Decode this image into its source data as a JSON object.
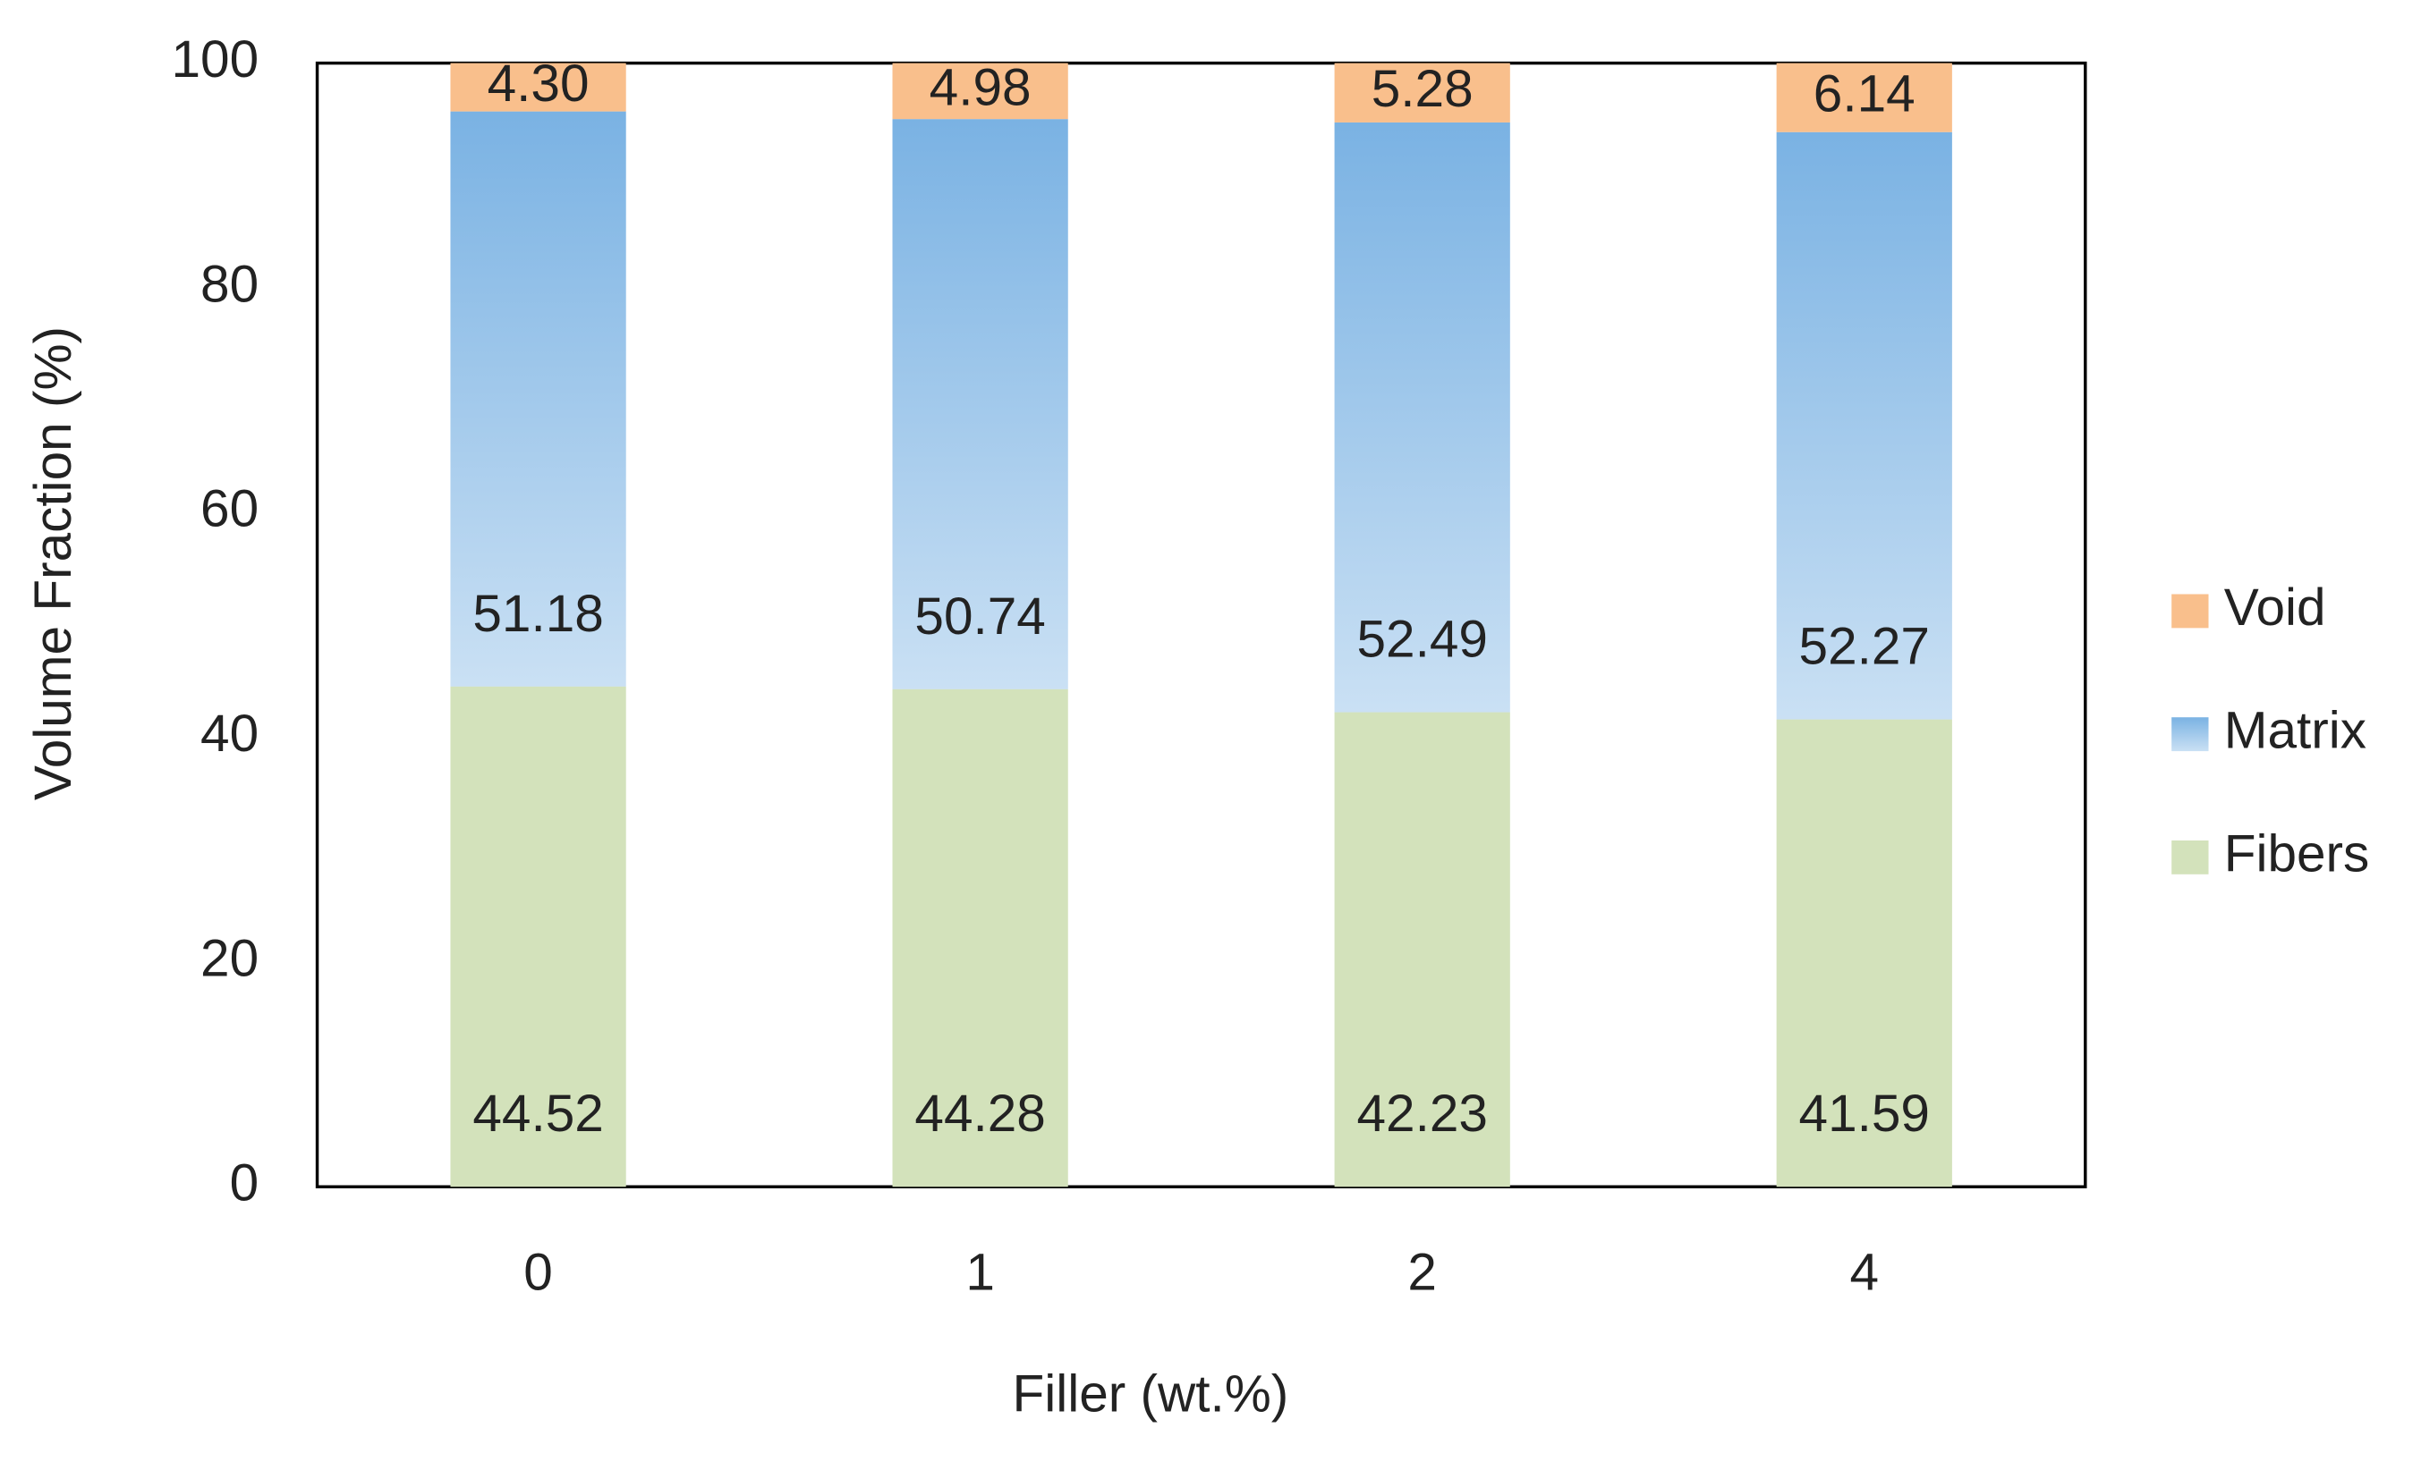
{
  "chart_data": {
    "type": "stacked_bar",
    "x_label": "Filler (wt.%)",
    "y_label": "Volume Fraction (%)",
    "categories": [
      "0",
      "1",
      "2",
      "4"
    ],
    "series": [
      {
        "name": "Fibers",
        "color": "#d3e2bb",
        "values": [
          44.52,
          44.28,
          42.23,
          41.59
        ]
      },
      {
        "name": "Matrix",
        "color": "#7ab2e3",
        "values": [
          51.18,
          50.74,
          52.49,
          52.27
        ]
      },
      {
        "name": "Void",
        "color": "#f9bf8c",
        "values": [
          4.3,
          4.98,
          5.28,
          6.14
        ],
        "value_labels": [
          "4.30",
          "4.98",
          "5.28",
          "6.14"
        ]
      }
    ],
    "ylim": [
      0,
      100
    ],
    "yticks": [
      0,
      20,
      40,
      60,
      80,
      100
    ],
    "grid": false,
    "legend": "right"
  }
}
